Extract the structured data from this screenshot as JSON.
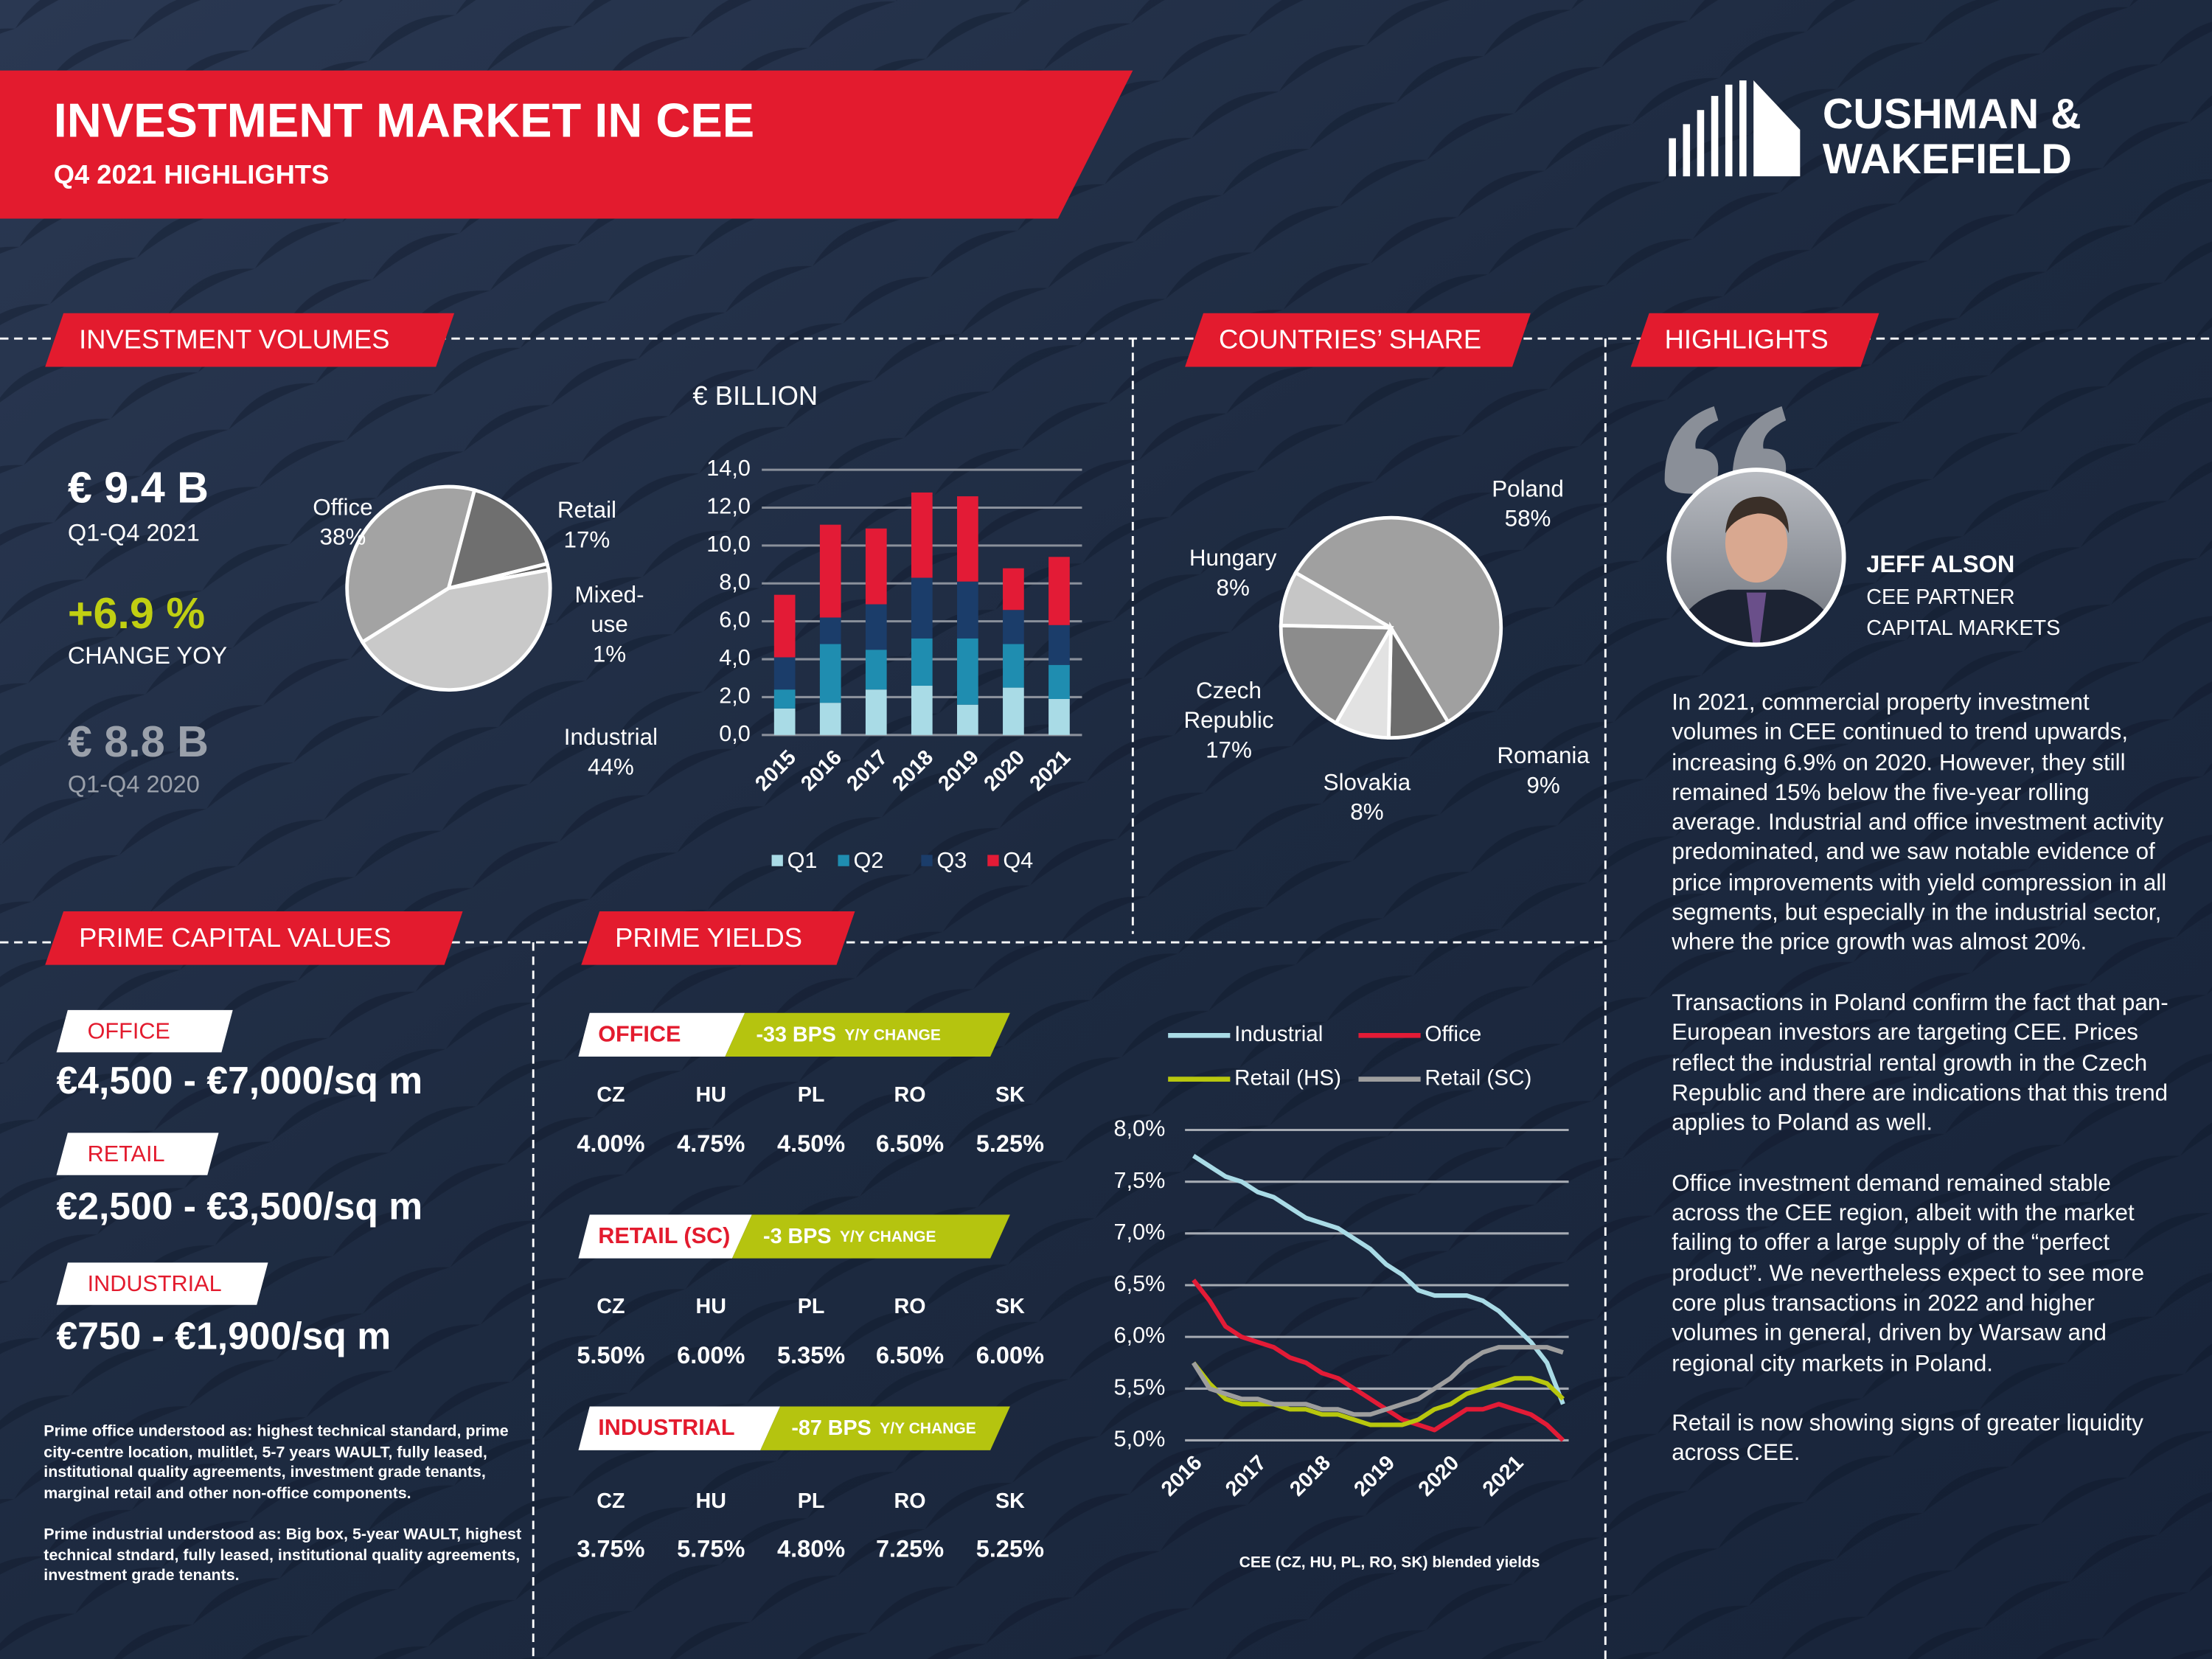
{
  "header": {
    "title": "INVESTMENT MARKET IN CEE",
    "subtitle": "Q4 2021 HIGHLIGHTS",
    "logo": [
      "CUSHMAN &",
      "WAKEFIELD"
    ]
  },
  "investment_volumes": {
    "heading": "INVESTMENT VOLUMES",
    "kpis": [
      {
        "value": "€ 9.4 B",
        "label": "Q1-Q4 2021"
      },
      {
        "value": "+6.9 %",
        "label": "CHANGE YOY"
      },
      {
        "value": "€ 8.8 B",
        "label": "Q1-Q4 2020"
      }
    ]
  },
  "countries_share": {
    "heading": "COUNTRIES’ SHARE"
  },
  "highlights": {
    "heading": "HIGHLIGHTS",
    "name": "JEFF ALSON",
    "roles": [
      "CEE PARTNER",
      "CAPITAL MARKETS"
    ],
    "paragraphs": [
      "In 2021, commercial property investment volumes in CEE continued to trend upwards, increasing 6.9% on 2020. However, they still remained 15% below the five-year rolling average. Industrial and office investment activity predominated, and we saw notable evidence of price improvements with yield compression in all segments, but especially in the industrial sector, where the price growth was almost 20%.",
      "Transactions in Poland confirm the fact that pan-European investors are targeting CEE. Prices reflect the industrial rental growth in the Czech Republic and there are indications that this trend applies to Poland as well.",
      "Office investment demand remained stable across the CEE region, albeit with the market failing to offer a large supply of the “perfect product”. We nevertheless expect to see more core plus transactions in 2022 and higher volumes in general, driven by Warsaw and regional city markets in Poland.",
      "Retail is now showing signs of greater liquidity across CEE."
    ]
  },
  "prime_capital_values": {
    "heading": "PRIME CAPITAL VALUES",
    "items": [
      {
        "sector": "OFFICE",
        "range": "€4,500 - €7,000/sq m"
      },
      {
        "sector": "RETAIL",
        "range": "€2,500 - €3,500/sq m"
      },
      {
        "sector": "INDUSTRIAL",
        "range": "€750 - €1,900/sq m"
      }
    ],
    "notes": [
      "Prime office understood as: highest technical  standard, prime city-centre location, mulitlet, 5-7 years  WAULT, fully leased, institutional quality agreements,  investment grade tenants, marginal retail and other  non-office components.",
      "Prime industrial understood as: Big box, 5-year WAULT, highest technical stndard, fully leased, institutional quality agreements, investment grade tenants."
    ]
  },
  "prime_yields": {
    "heading": "PRIME YIELDS",
    "blocks": [
      {
        "sector": "OFFICE",
        "change": "-33 BPS",
        "change_unit": "Y/Y CHANGE",
        "countries": [
          "CZ",
          "HU",
          "PL",
          "RO",
          "SK"
        ],
        "values": [
          "4.00%",
          "4.75%",
          "4.50%",
          "6.50%",
          "5.25%"
        ]
      },
      {
        "sector": "RETAIL (SC)",
        "change": "-3 BPS",
        "change_unit": "Y/Y CHANGE",
        "countries": [
          "CZ",
          "HU",
          "PL",
          "RO",
          "SK"
        ],
        "values": [
          "5.50%",
          "6.00%",
          "5.35%",
          "6.50%",
          "6.00%"
        ]
      },
      {
        "sector": "INDUSTRIAL",
        "change": "-87 BPS",
        "change_unit": "Y/Y CHANGE",
        "countries": [
          "CZ",
          "HU",
          "PL",
          "RO",
          "SK"
        ],
        "values": [
          "3.75%",
          "5.75%",
          "4.80%",
          "7.25%",
          "5.25%"
        ]
      }
    ]
  },
  "chart_data": [
    {
      "type": "pie",
      "categories": [
        "Office",
        "Retail",
        "Mixed-use",
        "Industrial"
      ],
      "values": [
        38,
        17,
        1,
        44
      ],
      "value_labels": [
        "38%",
        "17%",
        "1%",
        "44%"
      ],
      "colors": [
        "#a3a3a3",
        "#6f6f6f",
        "#5a5a5a",
        "#c9c9c9"
      ]
    },
    {
      "type": "bar",
      "stacked": true,
      "y_label": "€ BILLION",
      "categories": [
        "2015",
        "2016",
        "2017",
        "2018",
        "2019",
        "2020",
        "2021"
      ],
      "series": [
        {
          "name": "Q1",
          "color": "#a9dbe6",
          "values": [
            1.4,
            1.7,
            2.4,
            2.6,
            1.6,
            2.5,
            1.9
          ]
        },
        {
          "name": "Q2",
          "color": "#1f8db0",
          "values": [
            1.0,
            3.1,
            2.1,
            2.5,
            3.5,
            2.3,
            1.8
          ]
        },
        {
          "name": "Q3",
          "color": "#1b3d6a",
          "values": [
            1.7,
            1.4,
            2.4,
            3.2,
            3.0,
            1.8,
            2.1
          ]
        },
        {
          "name": "Q4",
          "color": "#e31b36",
          "values": [
            3.3,
            4.9,
            4.0,
            4.5,
            4.5,
            2.2,
            3.6
          ]
        }
      ],
      "ylim": [
        0,
        14
      ],
      "yticks": [
        {
          "value": 0,
          "label": "0,0"
        },
        {
          "value": 2,
          "label": "2,0"
        },
        {
          "value": 4,
          "label": "4,0"
        },
        {
          "value": 6,
          "label": "6,0"
        },
        {
          "value": 8,
          "label": "8,0"
        },
        {
          "value": 10,
          "label": "10,0"
        },
        {
          "value": 12,
          "label": "12,0"
        },
        {
          "value": 14,
          "label": "14,0"
        }
      ],
      "grid": true
    },
    {
      "type": "pie",
      "categories": [
        "Poland",
        "Romania",
        "Slovakia",
        "Czech Republic",
        "Hungary"
      ],
      "values": [
        58,
        9,
        8,
        17,
        8
      ],
      "value_labels": [
        "58%",
        "9%",
        "8%",
        "17%",
        "8%"
      ],
      "colors": [
        "#a0a0a0",
        "#6c6c6c",
        "#e2e2e2",
        "#8c8c8c",
        "#c6c6c6"
      ]
    },
    {
      "type": "line",
      "note": "CEE (CZ, HU, PL, RO, SK) blended yields",
      "categories": [
        "2016",
        null,
        null,
        null,
        "2017",
        null,
        null,
        null,
        "2018",
        null,
        null,
        null,
        "2019",
        null,
        null,
        null,
        "2020",
        null,
        null,
        null,
        "2021",
        null,
        null,
        null
      ],
      "series": [
        {
          "name": "Industrial",
          "color": "#a9dbe6",
          "values": [
            7.75,
            7.65,
            7.55,
            7.5,
            7.4,
            7.35,
            7.25,
            7.15,
            7.1,
            7.05,
            6.95,
            6.85,
            6.7,
            6.6,
            6.45,
            6.4,
            6.4,
            6.4,
            6.35,
            6.25,
            6.1,
            5.95,
            5.75,
            5.35
          ]
        },
        {
          "name": "Office",
          "color": "#e31b36",
          "values": [
            6.55,
            6.35,
            6.1,
            6.0,
            5.95,
            5.9,
            5.8,
            5.75,
            5.65,
            5.6,
            5.5,
            5.4,
            5.3,
            5.2,
            5.15,
            5.1,
            5.2,
            5.3,
            5.3,
            5.35,
            5.3,
            5.25,
            5.15,
            5.0
          ]
        },
        {
          "name": "Retail (HS)",
          "color": "#b8c70e",
          "values": [
            5.75,
            5.55,
            5.4,
            5.35,
            5.35,
            5.35,
            5.3,
            5.3,
            5.25,
            5.25,
            5.2,
            5.15,
            5.15,
            5.15,
            5.2,
            5.3,
            5.35,
            5.45,
            5.5,
            5.55,
            5.6,
            5.6,
            5.55,
            5.4
          ]
        },
        {
          "name": "Retail (SC)",
          "color": "#9e9e9e",
          "values": [
            5.75,
            5.5,
            5.45,
            5.4,
            5.4,
            5.35,
            5.35,
            5.35,
            5.3,
            5.3,
            5.25,
            5.25,
            5.3,
            5.35,
            5.4,
            5.5,
            5.6,
            5.75,
            5.85,
            5.9,
            5.9,
            5.9,
            5.9,
            5.85
          ]
        }
      ],
      "ylim": [
        5,
        8
      ],
      "yticks": [
        {
          "value": 5,
          "label": "5,0%"
        },
        {
          "value": 5.5,
          "label": "5,5%"
        },
        {
          "value": 6,
          "label": "6,0%"
        },
        {
          "value": 6.5,
          "label": "6,5%"
        },
        {
          "value": 7,
          "label": "7,0%"
        },
        {
          "value": 7.5,
          "label": "7,5%"
        },
        {
          "value": 8,
          "label": "8,0%"
        }
      ],
      "grid": true
    }
  ]
}
